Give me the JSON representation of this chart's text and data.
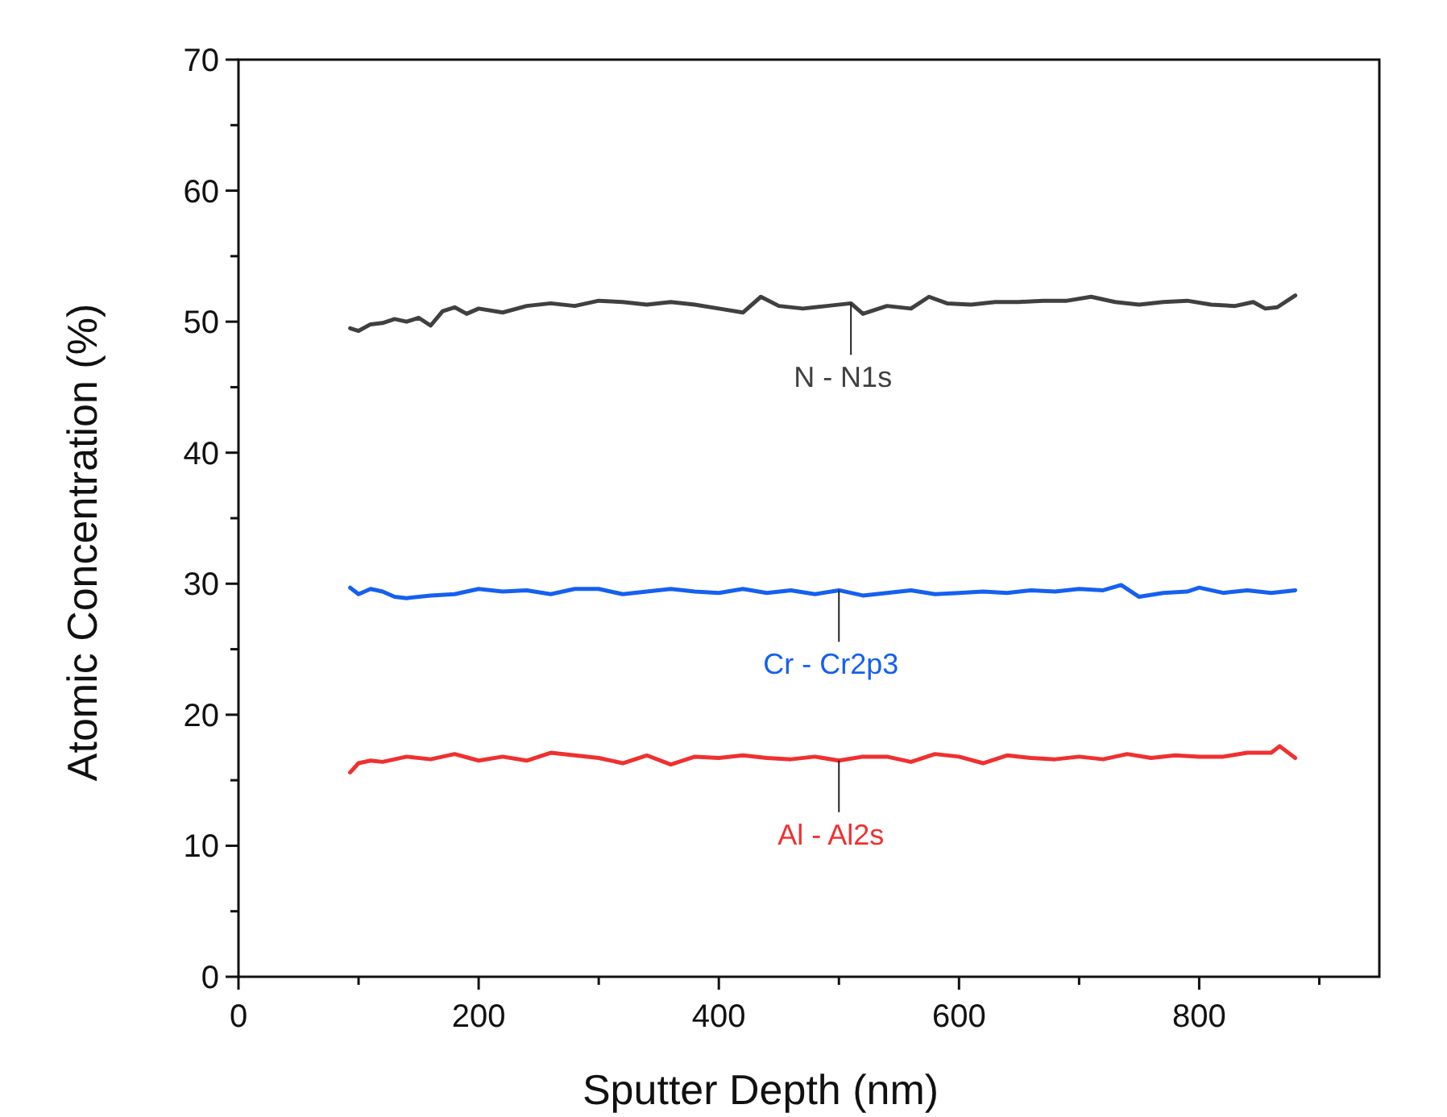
{
  "chart_data": {
    "type": "line",
    "xlabel": "Sputter Depth (nm)",
    "ylabel": "Atomic Concentration (%)",
    "xlim": [
      0,
      950
    ],
    "ylim": [
      0,
      70
    ],
    "xticks": [
      0,
      {
        "value": 100,
        "label": null
      },
      200,
      {
        "value": 300,
        "label": null
      },
      400,
      {
        "value": 500,
        "label": null
      },
      600,
      {
        "value": 700,
        "label": null
      },
      800,
      {
        "value": 900,
        "label": null
      }
    ],
    "yticks": [
      0,
      {
        "value": 5,
        "label": null
      },
      10,
      {
        "value": 15,
        "label": null
      },
      20,
      {
        "value": 25,
        "label": null
      },
      30,
      {
        "value": 35,
        "label": null
      },
      40,
      {
        "value": 45,
        "label": null
      },
      50,
      {
        "value": 55,
        "label": null
      },
      60,
      {
        "value": 65,
        "label": null
      },
      70
    ],
    "grid": false,
    "marker": "none",
    "line_style": "solid",
    "series": [
      {
        "name": "N - N1s",
        "color": "#404040",
        "x": [
          93,
          100,
          110,
          120,
          130,
          140,
          150,
          160,
          170,
          180,
          190,
          200,
          220,
          240,
          260,
          280,
          300,
          320,
          340,
          360,
          380,
          400,
          420,
          435,
          450,
          470,
          490,
          510,
          520,
          540,
          560,
          575,
          590,
          610,
          630,
          650,
          670,
          690,
          710,
          730,
          750,
          770,
          790,
          810,
          830,
          845,
          855,
          865,
          880
        ],
        "values": [
          49.5,
          49.3,
          49.8,
          49.9,
          50.2,
          50.0,
          50.3,
          49.7,
          50.8,
          51.1,
          50.6,
          51.0,
          50.7,
          51.2,
          51.4,
          51.2,
          51.6,
          51.5,
          51.3,
          51.5,
          51.3,
          51.0,
          50.7,
          51.9,
          51.2,
          51.0,
          51.2,
          51.4,
          50.6,
          51.2,
          51.0,
          51.9,
          51.4,
          51.3,
          51.5,
          51.5,
          51.6,
          51.6,
          51.9,
          51.5,
          51.3,
          51.5,
          51.6,
          51.3,
          51.2,
          51.5,
          51.0,
          51.1,
          52.0
        ]
      },
      {
        "name": "Cr - Cr2p3",
        "color": "#1560f0",
        "x": [
          93,
          100,
          110,
          120,
          130,
          140,
          160,
          180,
          200,
          220,
          240,
          260,
          280,
          300,
          320,
          340,
          360,
          380,
          400,
          420,
          440,
          460,
          480,
          500,
          520,
          540,
          560,
          580,
          600,
          620,
          640,
          660,
          680,
          700,
          720,
          735,
          750,
          770,
          790,
          800,
          820,
          840,
          860,
          880
        ],
        "values": [
          29.7,
          29.2,
          29.6,
          29.4,
          29.0,
          28.9,
          29.1,
          29.2,
          29.6,
          29.4,
          29.5,
          29.2,
          29.6,
          29.6,
          29.2,
          29.4,
          29.6,
          29.4,
          29.3,
          29.6,
          29.3,
          29.5,
          29.2,
          29.5,
          29.1,
          29.3,
          29.5,
          29.2,
          29.3,
          29.4,
          29.3,
          29.5,
          29.4,
          29.6,
          29.5,
          29.9,
          29.0,
          29.3,
          29.4,
          29.7,
          29.3,
          29.5,
          29.3,
          29.5
        ]
      },
      {
        "name": "Al - Al2s",
        "color": "#f03030",
        "x": [
          93,
          100,
          110,
          120,
          140,
          160,
          180,
          200,
          220,
          240,
          260,
          280,
          300,
          320,
          340,
          360,
          380,
          400,
          420,
          440,
          460,
          480,
          500,
          520,
          540,
          560,
          580,
          600,
          620,
          640,
          660,
          680,
          700,
          720,
          740,
          760,
          780,
          800,
          820,
          840,
          860,
          867,
          880
        ],
        "values": [
          15.6,
          16.3,
          16.5,
          16.4,
          16.8,
          16.6,
          17.0,
          16.5,
          16.8,
          16.5,
          17.1,
          16.9,
          16.7,
          16.3,
          16.9,
          16.2,
          16.8,
          16.7,
          16.9,
          16.7,
          16.6,
          16.8,
          16.5,
          16.8,
          16.8,
          16.4,
          17.0,
          16.8,
          16.3,
          16.9,
          16.7,
          16.6,
          16.8,
          16.6,
          17.0,
          16.7,
          16.9,
          16.8,
          16.8,
          17.1,
          17.1,
          17.6,
          16.7
        ]
      }
    ]
  }
}
